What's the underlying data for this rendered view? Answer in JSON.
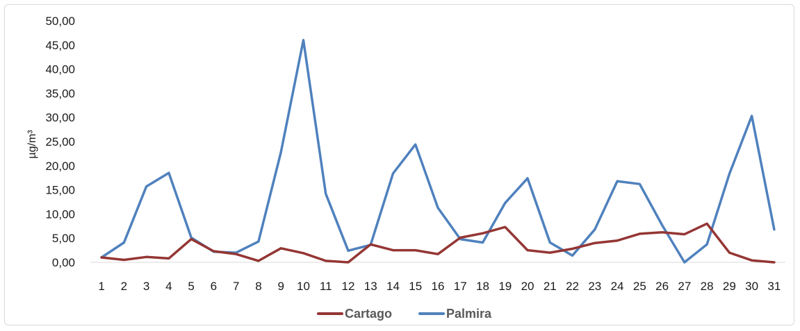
{
  "chart_data": {
    "type": "line",
    "title": "",
    "xlabel": "",
    "ylabel": "µg/m³",
    "ylim": [
      0,
      50
    ],
    "yticks": [
      "0,00",
      "5,00",
      "10,00",
      "15,00",
      "20,00",
      "25,00",
      "30,00",
      "35,00",
      "40,00",
      "45,00",
      "50,00"
    ],
    "categories": [
      "1",
      "2",
      "3",
      "4",
      "5",
      "6",
      "7",
      "8",
      "9",
      "10",
      "11",
      "12",
      "13",
      "14",
      "15",
      "16",
      "17",
      "18",
      "19",
      "20",
      "21",
      "22",
      "23",
      "24",
      "25",
      "26",
      "27",
      "28",
      "29",
      "30",
      "31"
    ],
    "series": [
      {
        "name": "Cartago",
        "color": "#943634",
        "values": [
          1.0,
          0.5,
          1.1,
          0.8,
          4.8,
          2.3,
          1.7,
          0.3,
          2.9,
          1.9,
          0.3,
          0.0,
          3.7,
          2.5,
          2.5,
          1.7,
          5.1,
          6.0,
          7.3,
          2.5,
          2.0,
          2.8,
          4.0,
          4.5,
          5.9,
          6.2,
          5.8,
          8.0,
          2.0,
          0.4,
          0.0
        ]
      },
      {
        "name": "Palmira",
        "color": "#4F81BD",
        "values": [
          1.0,
          4.1,
          15.7,
          18.5,
          5.1,
          2.2,
          2.0,
          4.3,
          22.8,
          46.0,
          14.2,
          2.4,
          3.6,
          18.4,
          24.4,
          11.3,
          4.8,
          4.1,
          12.3,
          17.4,
          4.1,
          1.4,
          6.8,
          16.8,
          16.2,
          7.7,
          0.0,
          3.7,
          18.3,
          30.3,
          6.8
        ]
      }
    ],
    "legend_position": "bottom",
    "grid": false
  }
}
